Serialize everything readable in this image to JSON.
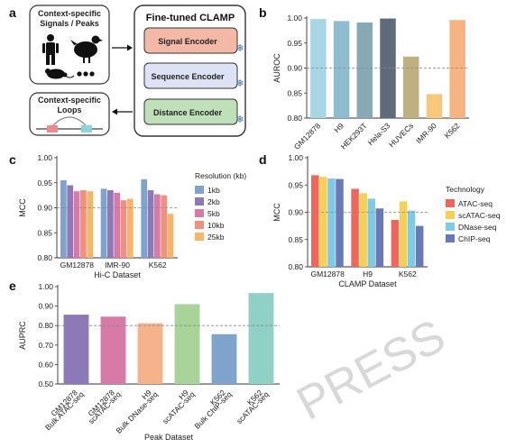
{
  "panel_a": {
    "letter": "a",
    "input_box": {
      "line1": "Context-specific",
      "line2": "Signals / Peaks"
    },
    "loops_box": {
      "line1": "Context-specific",
      "line2": "Loops"
    },
    "clamp_title": "Fine-tuned CLAMP",
    "encoders": [
      {
        "label": "Signal Encoder",
        "color": "#f3b9a6"
      },
      {
        "label": "Sequence Encoder",
        "color": "#dde3f4"
      },
      {
        "label": "Distance Encoder",
        "color": "#bfe0b8"
      }
    ]
  },
  "watermark": "PRESS",
  "chart_data": [
    {
      "panel": "b",
      "type": "bar",
      "ylabel": "AUROC",
      "xlabel": "",
      "ylim": [
        0.8,
        1.0
      ],
      "yticks": [
        0.8,
        0.85,
        0.9,
        0.95,
        1.0
      ],
      "yticklabels": [
        "0.80",
        "0.85",
        "0.90",
        "0.95",
        "1.00"
      ],
      "reference_line": 0.9,
      "categories": [
        "GM12878",
        "H9",
        "HEK293T",
        "Hela-S3",
        "HUVECs",
        "IMR-90",
        "K562"
      ],
      "values": [
        0.998,
        0.994,
        0.991,
        0.999,
        0.923,
        0.848,
        0.996
      ],
      "colors": [
        "#a9d6e5",
        "#8fbccf",
        "#86a9b6",
        "#5f6b7a",
        "#bfb07f",
        "#f7c77c",
        "#f7b483"
      ]
    },
    {
      "panel": "c",
      "type": "bar",
      "ylabel": "MCC",
      "xlabel": "Hi-C Dataset",
      "ylim": [
        0.8,
        1.0
      ],
      "yticks": [
        0.8,
        0.85,
        0.9,
        0.95,
        1.0
      ],
      "yticklabels": [
        "0.80",
        "0.85",
        "0.90",
        "0.95",
        "1.00"
      ],
      "reference_line": 0.9,
      "categories": [
        "GM12878",
        "IMR-90",
        "K562"
      ],
      "legend_title": "Resolution (kb)",
      "series": [
        {
          "name": "1kb",
          "color": "#7fa3cc",
          "values": [
            0.955,
            0.938,
            0.957
          ]
        },
        {
          "name": "2kb",
          "color": "#8d79b8",
          "values": [
            0.945,
            0.935,
            0.935
          ]
        },
        {
          "name": "5kb",
          "color": "#d77aa7",
          "values": [
            0.933,
            0.93,
            0.927
          ]
        },
        {
          "name": "10kb",
          "color": "#f2907f",
          "values": [
            0.935,
            0.915,
            0.925
          ]
        },
        {
          "name": "25kb",
          "color": "#f6b66a",
          "values": [
            0.933,
            0.918,
            0.888
          ]
        }
      ]
    },
    {
      "panel": "d",
      "type": "bar",
      "ylabel": "MCC",
      "xlabel": "CLAMP Dataset",
      "ylim": [
        0.8,
        1.0
      ],
      "yticks": [
        0.8,
        0.85,
        0.9,
        0.95,
        1.0
      ],
      "yticklabels": [
        "0.80",
        "0.85",
        "0.90",
        "0.95",
        "1.00"
      ],
      "reference_line": 0.9,
      "categories": [
        "GM12878",
        "H9",
        "K562"
      ],
      "legend_title": "Technology",
      "series": [
        {
          "name": "ATAC-seq",
          "color": "#f0665d",
          "values": [
            0.968,
            0.943,
            0.886
          ]
        },
        {
          "name": "scATAC-seq",
          "color": "#f6cf57",
          "values": [
            0.965,
            0.935,
            0.92
          ]
        },
        {
          "name": "DNase-seq",
          "color": "#7ecbe8",
          "values": [
            0.962,
            0.925,
            0.903
          ]
        },
        {
          "name": "ChIP-seq",
          "color": "#6979b7",
          "values": [
            0.961,
            0.907,
            0.875
          ]
        }
      ]
    },
    {
      "panel": "e",
      "type": "bar",
      "ylabel": "AUPRC",
      "xlabel": "Peak Dataset",
      "ylim": [
        0.5,
        1.0
      ],
      "yticks": [
        0.5,
        0.6,
        0.7,
        0.8,
        0.9,
        1.0
      ],
      "yticklabels": [
        "0.50",
        "0.60",
        "0.70",
        "0.80",
        "0.90",
        "1.00"
      ],
      "reference_line": 0.8,
      "categories": [
        [
          "GM12878",
          "Bulk ATAC-seq"
        ],
        [
          "GM12878",
          "scATAC-seq"
        ],
        [
          "H9",
          "Bulk DNase-seq"
        ],
        [
          "H9",
          "scATAC-seq"
        ],
        [
          "K562",
          "Bulk ChIP-seq"
        ],
        [
          "K562",
          "scATAC-seq"
        ]
      ],
      "values": [
        0.856,
        0.846,
        0.812,
        0.91,
        0.756,
        0.967
      ],
      "colors": [
        "#8d79b8",
        "#d77aa7",
        "#f6b28a",
        "#a8d49a",
        "#7fa3cc",
        "#8fd1c4"
      ]
    }
  ]
}
